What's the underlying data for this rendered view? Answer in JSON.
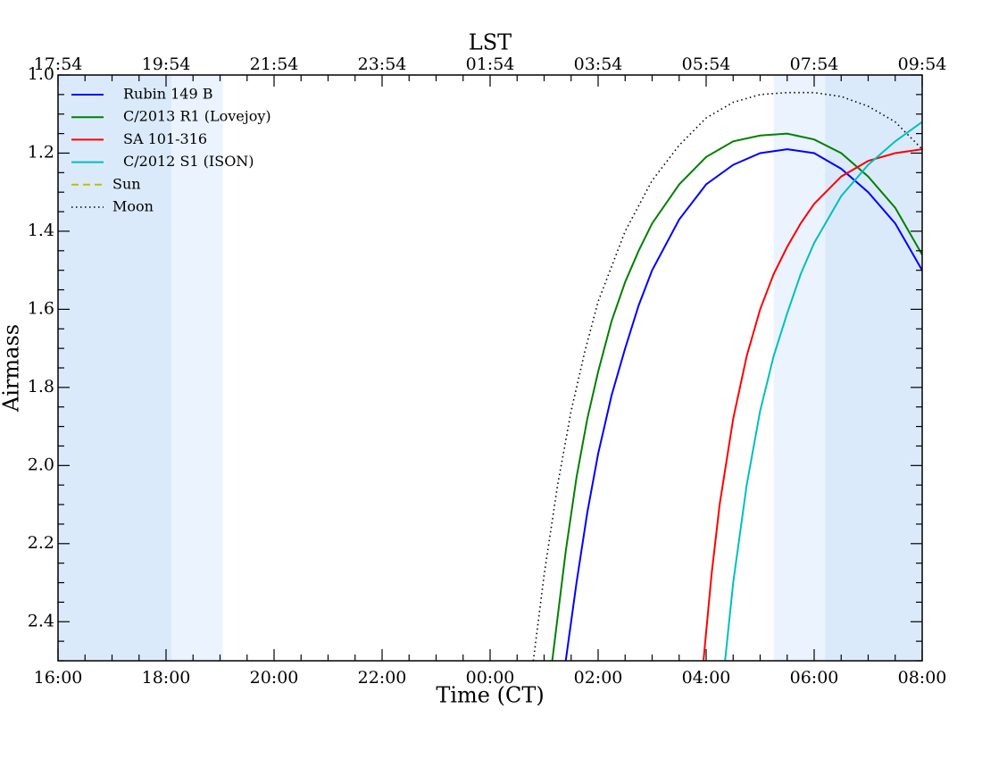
{
  "chart_data": {
    "type": "line",
    "xlabel": "Time (CT)",
    "ylabel": "Airmass",
    "top_xlabel": "LST",
    "xlim": [
      0,
      16
    ],
    "ylim": [
      2.5,
      1.0
    ],
    "x_inverted": false,
    "y_inverted": true,
    "x_ticks": [
      0,
      2,
      4,
      6,
      8,
      10,
      12,
      14,
      16
    ],
    "x_tick_labels": [
      "16:00",
      "18:00",
      "20:00",
      "22:00",
      "00:00",
      "02:00",
      "04:00",
      "06:00",
      "08:00"
    ],
    "top_ticks": [
      0,
      2,
      4,
      6,
      8,
      10,
      12,
      14,
      16
    ],
    "top_tick_labels": [
      "17:54",
      "19:54",
      "21:54",
      "23:54",
      "01:54",
      "03:54",
      "05:54",
      "07:54",
      "09:54"
    ],
    "y_ticks": [
      1.0,
      1.2,
      1.4,
      1.6,
      1.8,
      2.0,
      2.2,
      2.4
    ],
    "y_tick_labels": [
      "1.0",
      "1.2",
      "1.4",
      "1.6",
      "1.8",
      "2.0",
      "2.2",
      "2.4"
    ],
    "shaded_regions": [
      {
        "x0": 0,
        "x1": 2.1,
        "color": "#dbeafb"
      },
      {
        "x0": 2.1,
        "x1": 3.05,
        "color": "#eaf3fe"
      },
      {
        "x0": 13.25,
        "x1": 14.2,
        "color": "#eaf3fe"
      },
      {
        "x0": 14.2,
        "x1": 16,
        "color": "#dbeafb"
      }
    ],
    "legend_position": "top-left",
    "series": [
      {
        "name": "Rubin 149 B",
        "color": "#0000ff",
        "style": "solid",
        "x": [
          9.4,
          9.6,
          9.8,
          10.0,
          10.25,
          10.5,
          10.75,
          11.0,
          11.5,
          12.0,
          12.5,
          13.0,
          13.5,
          14.0,
          14.5,
          15.0,
          15.5,
          16.0
        ],
        "y": [
          2.5,
          2.3,
          2.12,
          1.97,
          1.82,
          1.7,
          1.59,
          1.5,
          1.37,
          1.28,
          1.23,
          1.2,
          1.19,
          1.2,
          1.24,
          1.3,
          1.38,
          1.5
        ]
      },
      {
        "name": "C/2013 R1 (Lovejoy)",
        "color": "#008000",
        "style": "solid",
        "x": [
          9.15,
          9.4,
          9.6,
          9.8,
          10.0,
          10.25,
          10.5,
          10.75,
          11.0,
          11.5,
          12.0,
          12.5,
          13.0,
          13.5,
          14.0,
          14.5,
          15.0,
          15.5,
          16.0
        ],
        "y": [
          2.5,
          2.22,
          2.03,
          1.88,
          1.76,
          1.63,
          1.53,
          1.45,
          1.38,
          1.28,
          1.21,
          1.17,
          1.155,
          1.15,
          1.165,
          1.2,
          1.26,
          1.34,
          1.46
        ]
      },
      {
        "name": "SA 101-316",
        "color": "#ff0000",
        "style": "solid",
        "x": [
          11.95,
          12.1,
          12.25,
          12.5,
          12.75,
          13.0,
          13.25,
          13.5,
          13.75,
          14.0,
          14.5,
          15.0,
          15.5,
          16.0
        ],
        "y": [
          2.5,
          2.28,
          2.1,
          1.88,
          1.72,
          1.6,
          1.51,
          1.44,
          1.38,
          1.33,
          1.26,
          1.22,
          1.2,
          1.19
        ]
      },
      {
        "name": "C/2012 S1 (ISON)",
        "color": "#00bfbf",
        "style": "solid",
        "x": [
          12.35,
          12.5,
          12.75,
          13.0,
          13.25,
          13.5,
          13.75,
          14.0,
          14.5,
          15.0,
          15.5,
          16.0
        ],
        "y": [
          2.5,
          2.3,
          2.05,
          1.86,
          1.72,
          1.61,
          1.51,
          1.43,
          1.31,
          1.23,
          1.17,
          1.12
        ]
      },
      {
        "name": "Sun",
        "color": "#bfbf00",
        "style": "dashed",
        "x": [],
        "y": []
      },
      {
        "name": "Moon",
        "color": "#000000",
        "style": "dotted",
        "x": [
          8.8,
          9.0,
          9.25,
          9.5,
          9.75,
          10.0,
          10.5,
          11.0,
          11.5,
          12.0,
          12.5,
          13.0,
          13.5,
          14.0,
          14.5,
          15.0,
          15.5,
          16.0
        ],
        "y": [
          2.5,
          2.28,
          2.05,
          1.86,
          1.71,
          1.58,
          1.4,
          1.27,
          1.18,
          1.11,
          1.07,
          1.05,
          1.045,
          1.045,
          1.055,
          1.08,
          1.12,
          1.19
        ]
      }
    ]
  }
}
